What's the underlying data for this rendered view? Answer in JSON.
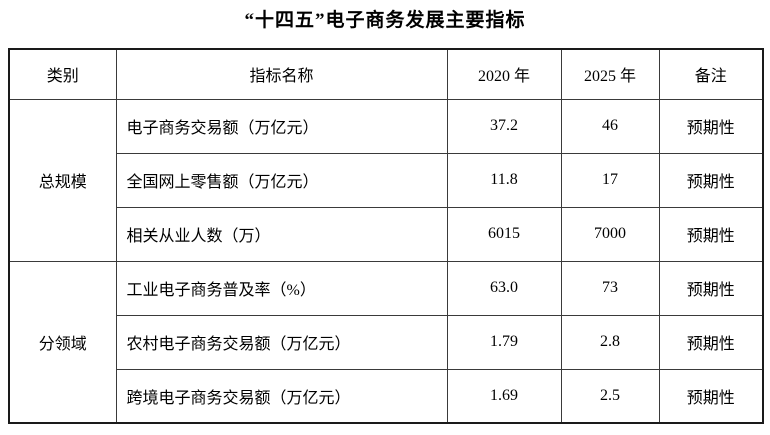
{
  "page": {
    "title": "“十四五”电子商务发展主要指标"
  },
  "table": {
    "headers": [
      "类别",
      "指标名称",
      "2020 年",
      "2025 年",
      "备注"
    ],
    "groups": [
      {
        "category": "总规模",
        "rows": [
          {
            "name": "电子商务交易额（万亿元）",
            "y2020": "37.2",
            "y2025": "46",
            "note": "预期性"
          },
          {
            "name": "全国网上零售额（万亿元）",
            "y2020": "11.8",
            "y2025": "17",
            "note": "预期性"
          },
          {
            "name": "相关从业人数（万）",
            "y2020": "6015",
            "y2025": "7000",
            "note": "预期性"
          }
        ]
      },
      {
        "category": "分领域",
        "rows": [
          {
            "name": "工业电子商务普及率（%）",
            "y2020": "63.0",
            "y2025": "73",
            "note": "预期性"
          },
          {
            "name": "农村电子商务交易额（万亿元）",
            "y2020": "1.79",
            "y2025": "2.8",
            "note": "预期性"
          },
          {
            "name": "跨境电子商务交易额（万亿元）",
            "y2020": "1.69",
            "y2025": "2.5",
            "note": "预期性"
          }
        ]
      }
    ]
  }
}
